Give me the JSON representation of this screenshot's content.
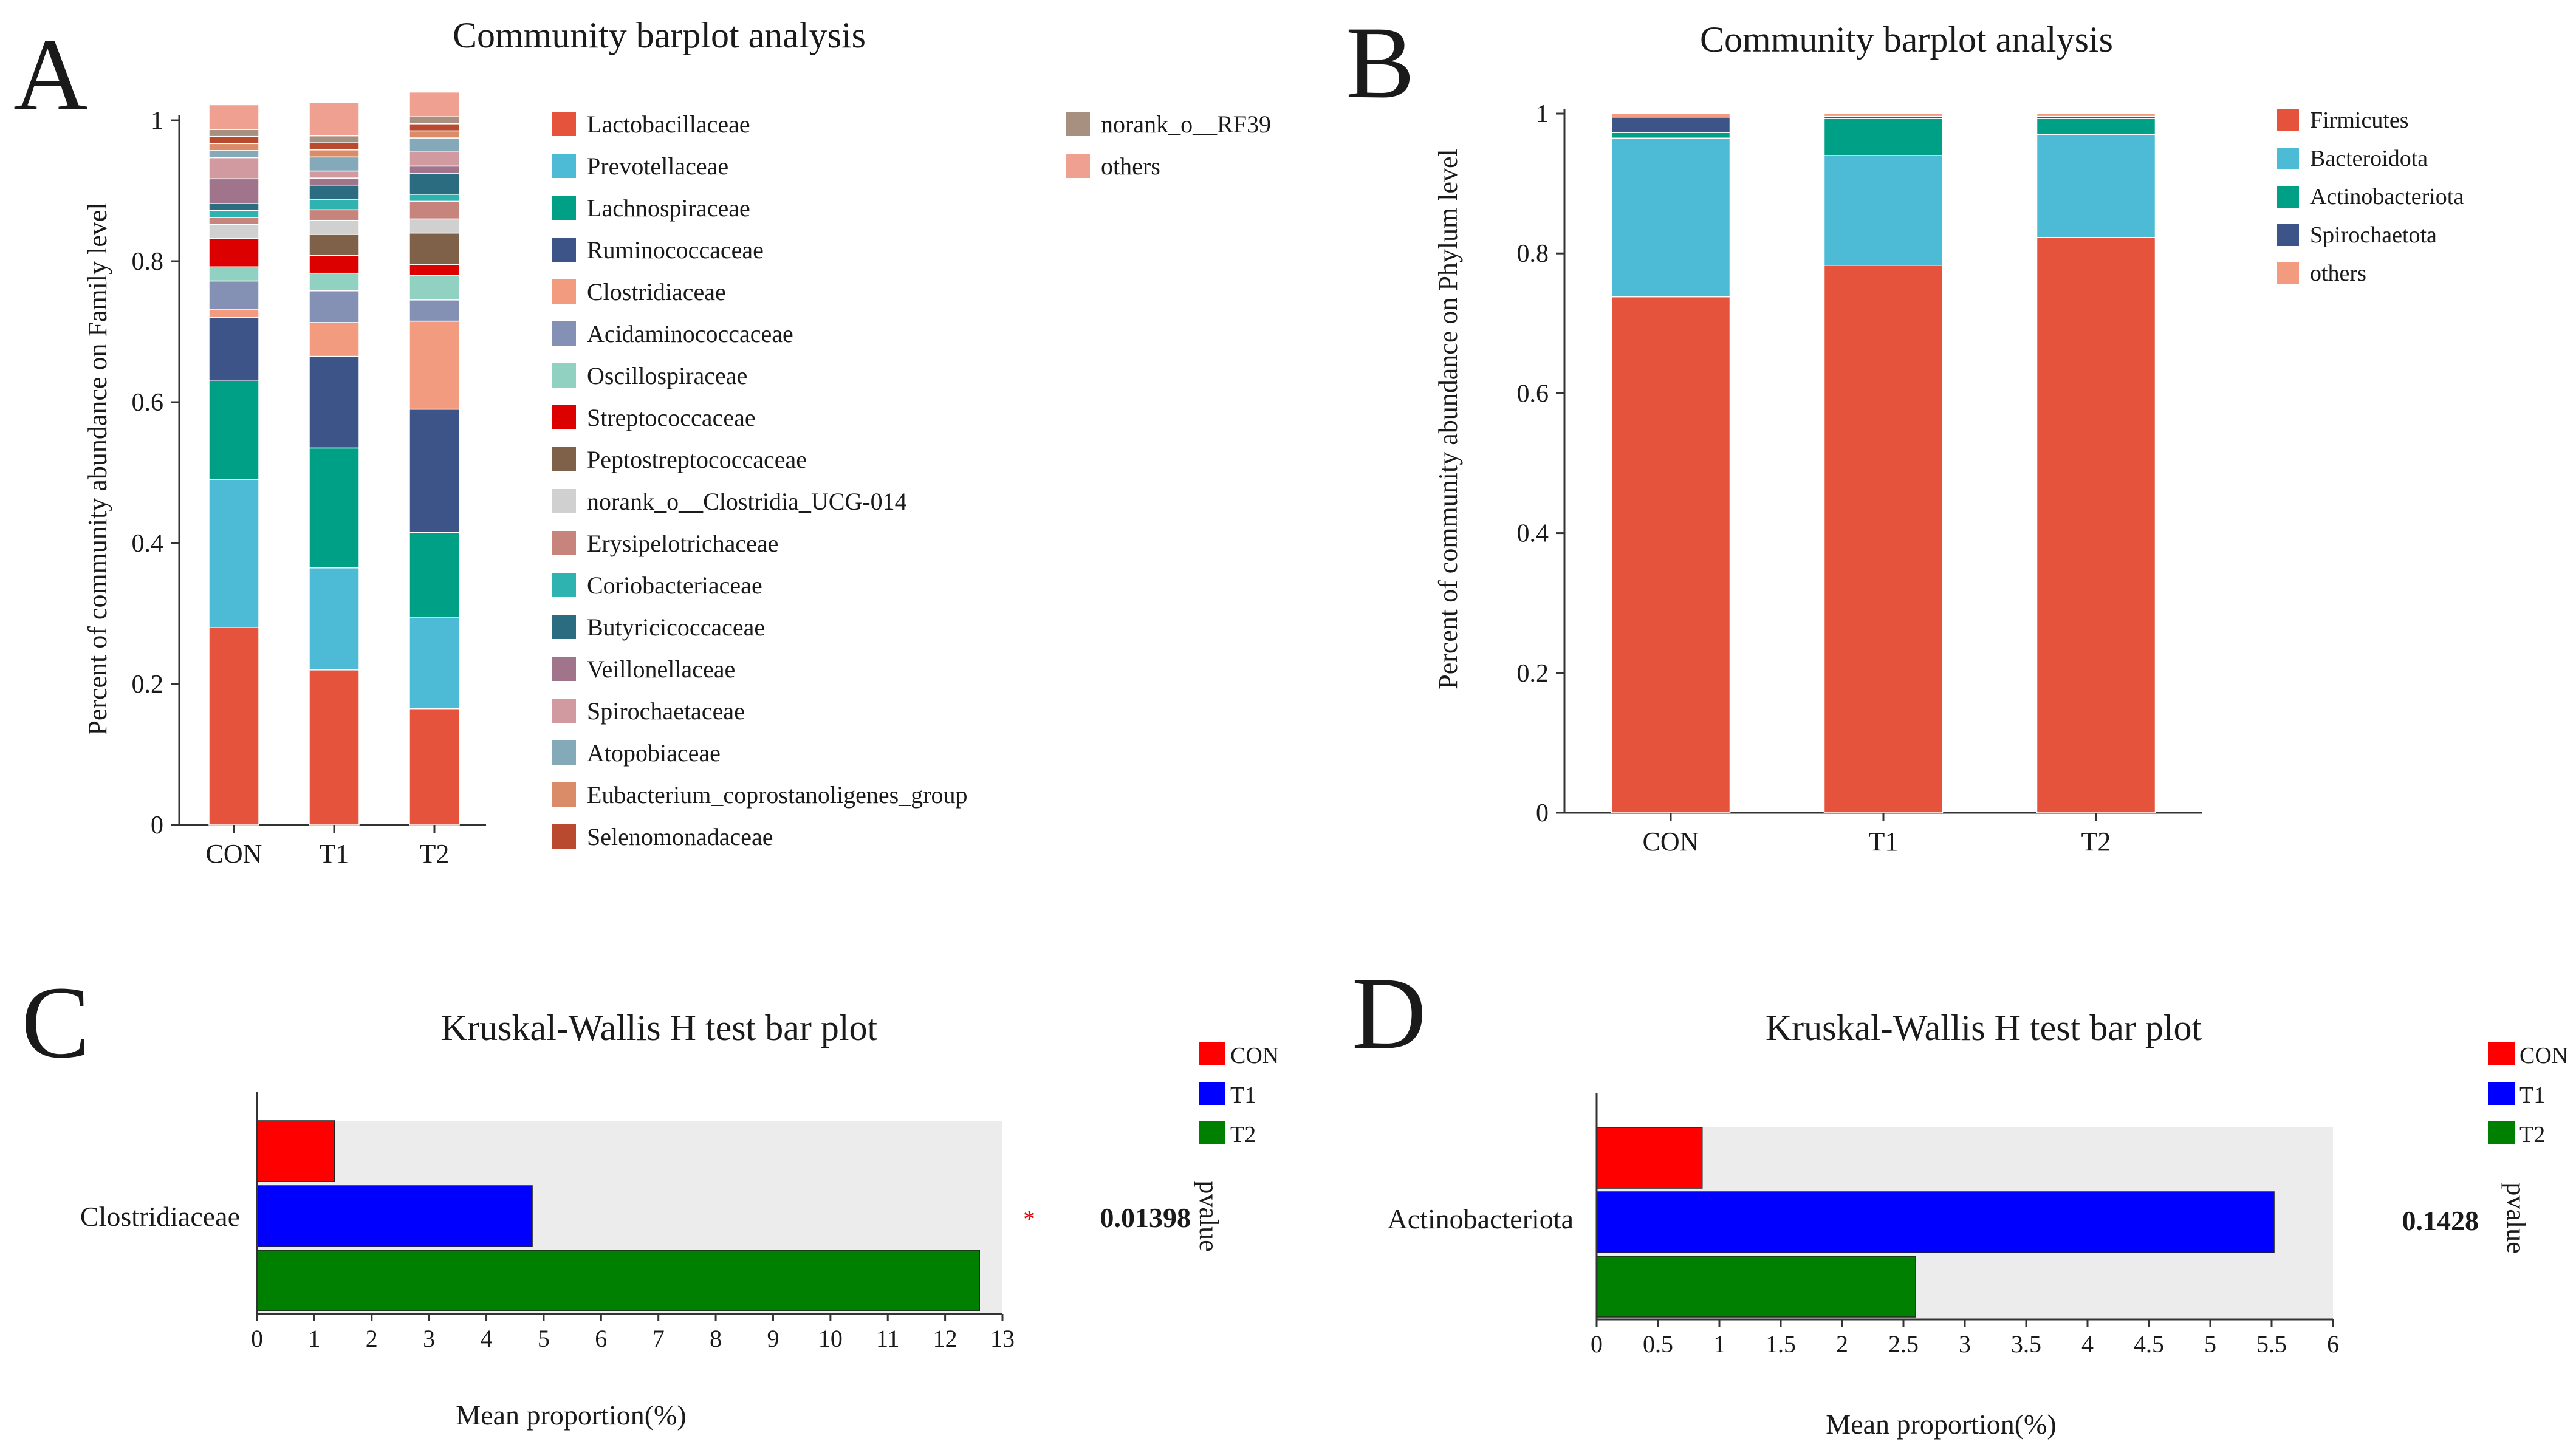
{
  "panels": {
    "A": {
      "letter": "A",
      "title": "Community barplot analysis",
      "ylabel": "Percent of community abundance on Family level"
    },
    "B": {
      "letter": "B",
      "title": "Community barplot analysis",
      "ylabel": "Percent of community abundance on Phylum level"
    },
    "C": {
      "letter": "C",
      "title": "Kruskal-Wallis H test bar plot",
      "xlabel": "Mean proportion(%)",
      "pvalue_header": "pvalue",
      "feature": "Clostridiaceae",
      "pvalue": "0.01398",
      "significance": "*"
    },
    "D": {
      "letter": "D",
      "title": "Kruskal-Wallis H test bar plot",
      "xlabel": "Mean proportion(%)",
      "pvalue_header": "pvalue",
      "feature": "Actinobacteriota",
      "pvalue": "0.1428",
      "significance": ""
    }
  },
  "chart_data": [
    {
      "id": "A",
      "type": "bar",
      "stacked": true,
      "title": "Community barplot analysis",
      "xlabel": "",
      "ylabel": "Percent of community abundance on Family level",
      "ylim": [
        0,
        1
      ],
      "yticks": [
        "0",
        "0.2",
        "0.4",
        "0.6",
        "0.8",
        "1"
      ],
      "categories": [
        "CON",
        "T1",
        "T2"
      ],
      "series": [
        {
          "name": "Lactobacillaceae",
          "color": "#e5533d",
          "values": [
            0.28,
            0.22,
            0.165
          ]
        },
        {
          "name": "Prevotellaceae",
          "color": "#4dbbd5",
          "values": [
            0.21,
            0.145,
            0.13
          ]
        },
        {
          "name": "Lachnospiraceae",
          "color": "#00a087",
          "values": [
            0.14,
            0.17,
            0.12
          ]
        },
        {
          "name": "Ruminococcaceae",
          "color": "#3c5488",
          "values": [
            0.09,
            0.13,
            0.175
          ]
        },
        {
          "name": "Clostridiaceae",
          "color": "#f39b7f",
          "values": [
            0.012,
            0.048,
            0.125
          ]
        },
        {
          "name": "Acidaminococcaceae",
          "color": "#8491b4",
          "values": [
            0.04,
            0.045,
            0.03
          ]
        },
        {
          "name": "Oscillospiraceae",
          "color": "#91d1c2",
          "values": [
            0.02,
            0.025,
            0.035
          ]
        },
        {
          "name": "Streptococcaceae",
          "color": "#dc0000",
          "values": [
            0.04,
            0.025,
            0.015
          ]
        },
        {
          "name": "Peptostreptococcaceae",
          "color": "#7e6148",
          "values": [
            0.0,
            0.03,
            0.045
          ]
        },
        {
          "name": "norank_o__Clostridia_UCG-014",
          "color": "#d0d0d0",
          "values": [
            0.02,
            0.02,
            0.02
          ]
        },
        {
          "name": "Erysipelotrichaceae",
          "color": "#c7847d",
          "values": [
            0.01,
            0.015,
            0.025
          ]
        },
        {
          "name": "Coriobacteriaceae",
          "color": "#2fb3b0",
          "values": [
            0.01,
            0.015,
            0.01
          ]
        },
        {
          "name": "Butyricicoccaceae",
          "color": "#2b6c80",
          "values": [
            0.01,
            0.02,
            0.03
          ]
        },
        {
          "name": "Veillonellaceae",
          "color": "#a0748a",
          "values": [
            0.035,
            0.01,
            0.01
          ]
        },
        {
          "name": "Spirochaetaceae",
          "color": "#d19aa0",
          "values": [
            0.03,
            0.01,
            0.02
          ]
        },
        {
          "name": "Atopobiaceae",
          "color": "#84a9b9",
          "values": [
            0.01,
            0.02,
            0.02
          ]
        },
        {
          "name": "Eubacterium_coprostanoligenes_group",
          "color": "#da8b67",
          "values": [
            0.01,
            0.01,
            0.01
          ]
        },
        {
          "name": "Selenomonadaceae",
          "color": "#b94a2f",
          "values": [
            0.01,
            0.01,
            0.01
          ]
        },
        {
          "name": "norank_o__RF39",
          "color": "#a89080",
          "values": [
            0.01,
            0.01,
            0.01
          ]
        },
        {
          "name": "others",
          "color": "#f0a090",
          "values": [
            0.035,
            0.047,
            0.035
          ]
        }
      ]
    },
    {
      "id": "B",
      "type": "bar",
      "stacked": true,
      "title": "Community barplot analysis",
      "xlabel": "",
      "ylabel": "Percent of community abundance on Phylum level",
      "ylim": [
        0,
        1
      ],
      "yticks": [
        "0",
        "0.2",
        "0.4",
        "0.6",
        "0.8",
        "1"
      ],
      "categories": [
        "CON",
        "T1",
        "T2"
      ],
      "series": [
        {
          "name": "Firmicutes",
          "color": "#e5533d",
          "values": [
            0.738,
            0.783,
            0.823
          ]
        },
        {
          "name": "Bacteroidota",
          "color": "#4dbbd5",
          "values": [
            0.227,
            0.157,
            0.147
          ]
        },
        {
          "name": "Actinobacteriota",
          "color": "#00a087",
          "values": [
            0.008,
            0.053,
            0.023
          ]
        },
        {
          "name": "Spirochaetota",
          "color": "#3c5488",
          "values": [
            0.022,
            0.003,
            0.003
          ]
        },
        {
          "name": "others",
          "color": "#f39b7f",
          "values": [
            0.005,
            0.004,
            0.004
          ]
        }
      ]
    },
    {
      "id": "C",
      "type": "bar",
      "orientation": "horizontal",
      "title": "Kruskal-Wallis H test bar plot",
      "xlabel": "Mean proportion(%)",
      "ylabel": "",
      "xlim": [
        0,
        13
      ],
      "xticks": [
        "0",
        "1",
        "2",
        "3",
        "4",
        "5",
        "6",
        "7",
        "8",
        "9",
        "10",
        "11",
        "12",
        "13"
      ],
      "categories": [
        "Clostridiaceae"
      ],
      "series": [
        {
          "name": "CON",
          "color": "#ff0000",
          "values": [
            1.35
          ]
        },
        {
          "name": "T1",
          "color": "#0000ff",
          "values": [
            4.8
          ]
        },
        {
          "name": "T2",
          "color": "#008000",
          "values": [
            12.6
          ]
        }
      ],
      "pvalue": "0.01398"
    },
    {
      "id": "D",
      "type": "bar",
      "orientation": "horizontal",
      "title": "Kruskal-Wallis H test bar plot",
      "xlabel": "Mean proportion(%)",
      "ylabel": "",
      "xlim": [
        0,
        6
      ],
      "xticks": [
        "0",
        "0.5",
        "1",
        "1.5",
        "2",
        "2.5",
        "3",
        "3.5",
        "4",
        "4.5",
        "5",
        "5.5",
        "6"
      ],
      "categories": [
        "Actinobacteriota"
      ],
      "series": [
        {
          "name": "CON",
          "color": "#ff0000",
          "values": [
            0.86
          ]
        },
        {
          "name": "T1",
          "color": "#0000ff",
          "values": [
            5.52
          ]
        },
        {
          "name": "T2",
          "color": "#008000",
          "values": [
            2.6
          ]
        }
      ],
      "pvalue": "0.1428"
    }
  ]
}
